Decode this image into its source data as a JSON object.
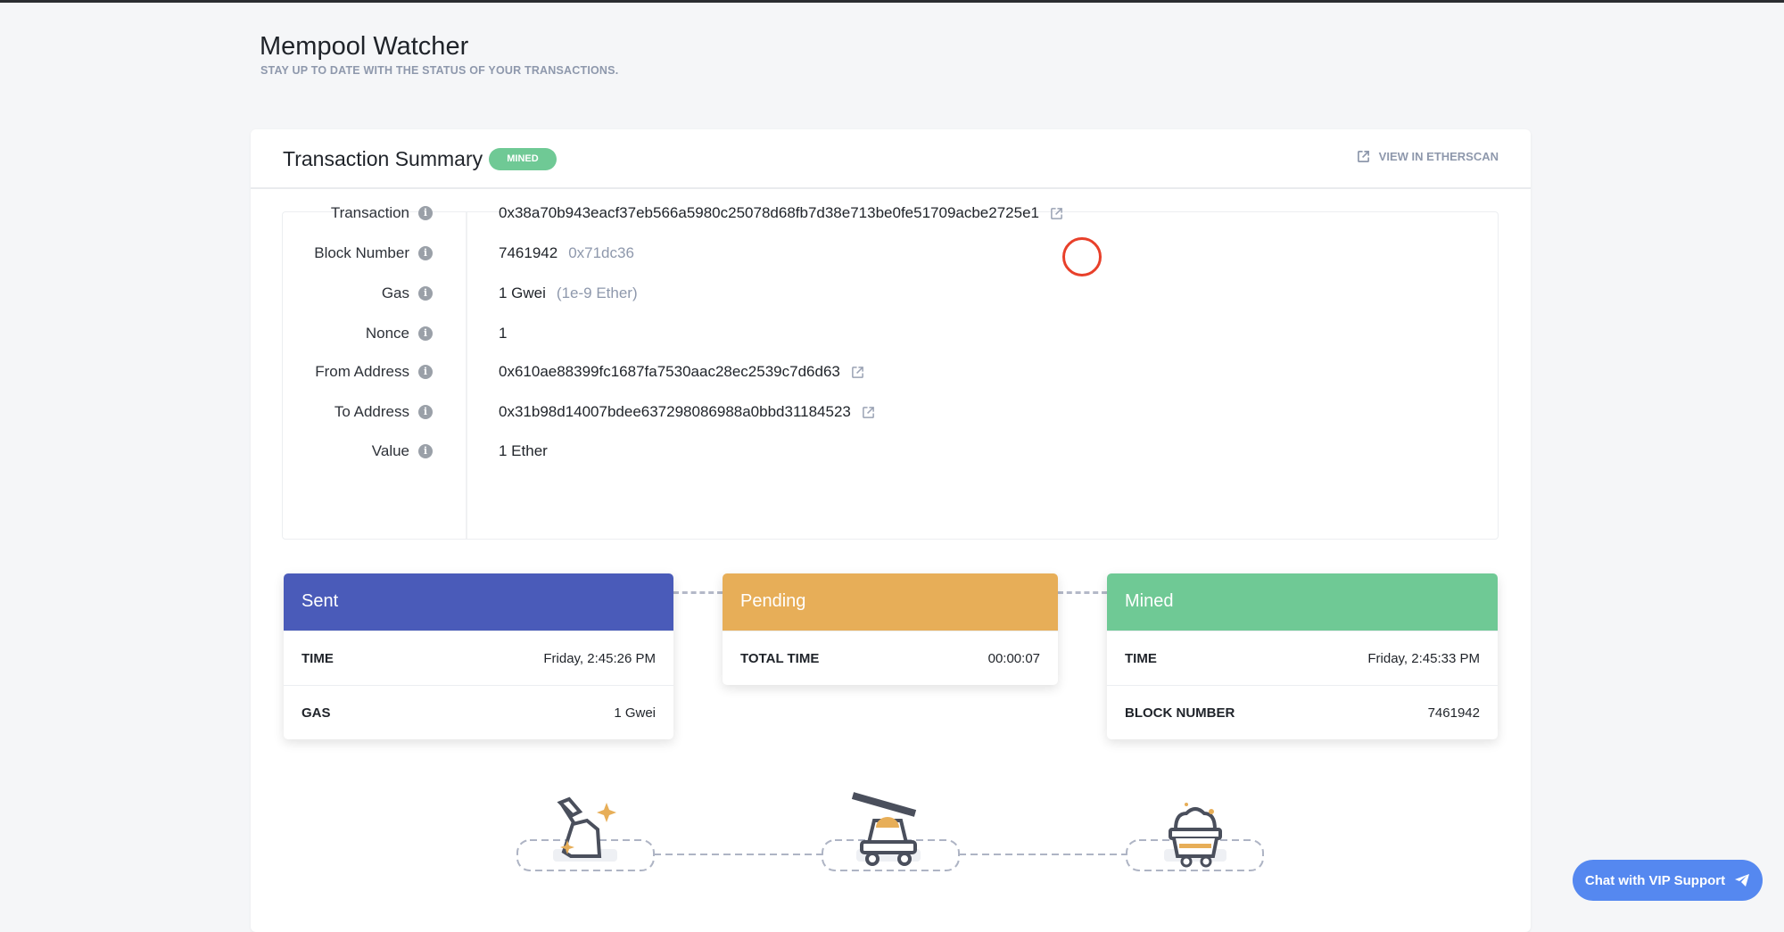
{
  "header": {
    "title": "Mempool Watcher",
    "subtitle": "STAY UP TO DATE WITH THE STATUS OF YOUR TRANSACTIONS."
  },
  "summary": {
    "title": "Transaction Summary",
    "status": "MINED",
    "etherscan_label": "VIEW IN ETHERSCAN"
  },
  "details": [
    {
      "label": "Transaction",
      "value": "0x38a70b943eacf37eb566a5980c25078d68fb7d38e713be0fe51709acbe2725e1",
      "link": true
    },
    {
      "label": "Block Number",
      "value": "7461942",
      "secondary": "0x71dc36"
    },
    {
      "label": "Gas",
      "value": "1 Gwei",
      "secondary": "(1e-9 Ether)"
    },
    {
      "label": "Nonce",
      "value": "1"
    },
    {
      "label": "From Address",
      "value": "0x610ae88399fc1687fa7530aac28ec2539c7d6d63",
      "link": true
    },
    {
      "label": "To Address",
      "value": "0x31b98d14007bdee637298086988a0bbd31184523",
      "link": true
    },
    {
      "label": "Value",
      "value": "1 Ether"
    }
  ],
  "stages": {
    "sent": {
      "title": "Sent",
      "color": "#4a5bb9",
      "rows": [
        {
          "k": "TIME",
          "v": "Friday, 2:45:26 PM"
        },
        {
          "k": "GAS",
          "v": "1 Gwei"
        }
      ]
    },
    "pending": {
      "title": "Pending",
      "color": "#e7ae58",
      "rows": [
        {
          "k": "TOTAL TIME",
          "v": "00:00:07"
        }
      ]
    },
    "mined": {
      "title": "Mined",
      "color": "#6fc995",
      "rows": [
        {
          "k": "TIME",
          "v": "Friday, 2:45:33 PM"
        },
        {
          "k": "BLOCK NUMBER",
          "v": "7461942"
        }
      ]
    }
  },
  "icons": [
    "pickaxe-icon",
    "mining-cart-lever-icon",
    "ore-cart-icon",
    "external-link-icon",
    "info-icon",
    "paper-plane-icon"
  ],
  "chat": {
    "label": "Chat with VIP Support"
  }
}
